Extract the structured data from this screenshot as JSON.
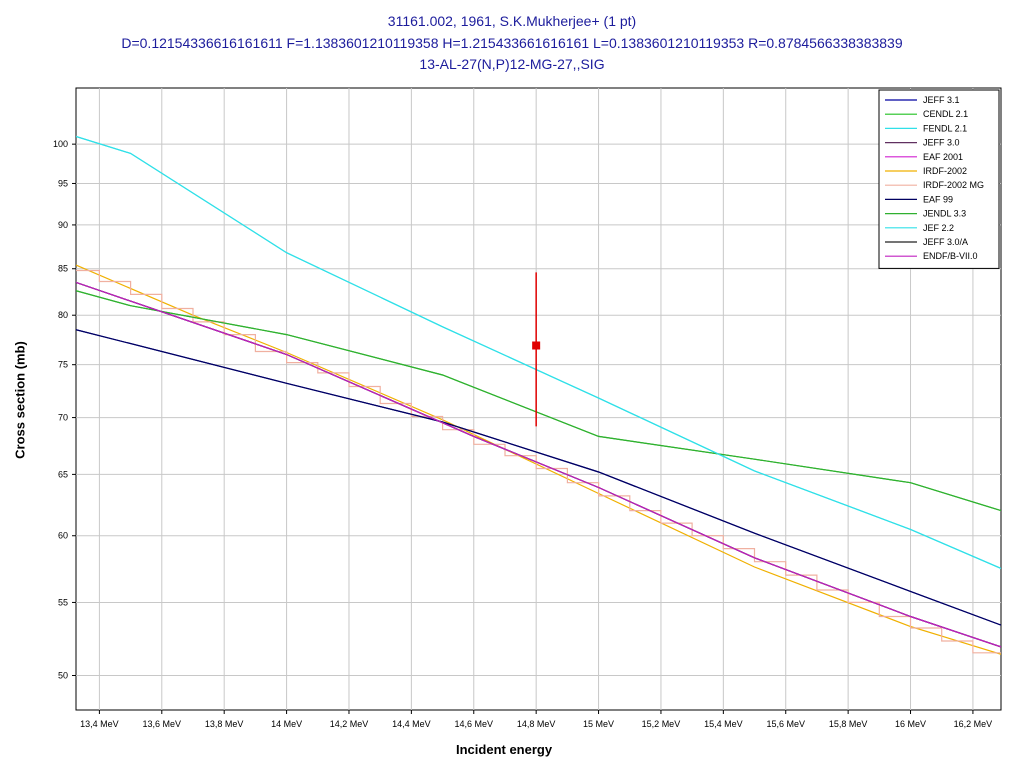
{
  "title": {
    "line1": "31161.002, 1961, S.K.Mukherjee+ (1 pt)",
    "line2": "D=0.12154336616161611 F=1.1383601210119358 H=1.215433661616161 L=0.1383601210119353 R=0.8784566338383839",
    "line3": "13-AL-27(N,P)12-MG-27,,SIG"
  },
  "chart_data": {
    "type": "line",
    "xlabel": "Incident energy",
    "ylabel": "Cross section (mb)",
    "x_unit_suffix": "MeV",
    "xlim": [
      13.325,
      16.29
    ],
    "ylim": [
      47.8,
      107.6
    ],
    "y_scale": "log",
    "x_ticks": [
      13.4,
      13.6,
      13.8,
      14.0,
      14.2,
      14.4,
      14.6,
      14.8,
      15.0,
      15.2,
      15.4,
      15.6,
      15.8,
      16.0,
      16.2
    ],
    "x_tick_labels": [
      "13,4 MeV",
      "13,6 MeV",
      "13,8 MeV",
      "14 MeV",
      "14,2 MeV",
      "14,4 MeV",
      "14,6 MeV",
      "14,8 MeV",
      "15 MeV",
      "15,2 MeV",
      "15,4 MeV",
      "15,6 MeV",
      "15,8 MeV",
      "16 MeV",
      "16,2 MeV"
    ],
    "y_ticks": [
      50,
      55,
      60,
      65,
      70,
      75,
      80,
      85,
      90,
      95,
      100
    ],
    "y_tick_labels": [
      "50",
      "55",
      "60",
      "65",
      "70",
      "75",
      "80",
      "85",
      "90",
      "95",
      "100"
    ],
    "grid": true,
    "legend_position": "top-right",
    "series": [
      {
        "name": "JEFF 3.1",
        "color": "#0000a0",
        "style": "line",
        "x": [
          13.325,
          14.0,
          14.5,
          15.0,
          15.5,
          16.0,
          16.29
        ],
        "y": [
          78.5,
          73.2,
          69.6,
          65.2,
          60.2,
          55.8,
          53.4
        ]
      },
      {
        "name": "CENDL 2.1",
        "color": "#20c020",
        "style": "line",
        "x": [
          13.325,
          13.5,
          14.0,
          14.5,
          15.0,
          15.5,
          16.0,
          16.29
        ],
        "y": [
          82.6,
          81.0,
          78.0,
          74.0,
          68.3,
          66.3,
          64.3,
          62.0
        ]
      },
      {
        "name": "FENDL 2.1",
        "color": "#30e0e8",
        "style": "line",
        "x": [
          13.325,
          13.5,
          14.0,
          14.5,
          15.0,
          15.5,
          16.0,
          16.29
        ],
        "y": [
          101.0,
          98.8,
          86.8,
          78.8,
          71.8,
          65.3,
          60.5,
          57.5
        ]
      },
      {
        "name": "JEFF 3.0",
        "color": "#603060",
        "style": "line",
        "x": [
          13.325,
          14.0,
          14.6,
          15.0,
          15.5,
          16.0,
          16.29
        ],
        "y": [
          83.5,
          76.0,
          68.3,
          63.9,
          58.3,
          54.0,
          51.9
        ]
      },
      {
        "name": "EAF 2001",
        "color": "#d020d0",
        "style": "line",
        "x": [
          13.325,
          14.0,
          14.6,
          15.0,
          15.5,
          16.0,
          16.29
        ],
        "y": [
          83.5,
          76.0,
          68.3,
          63.9,
          58.3,
          54.0,
          51.9
        ]
      },
      {
        "name": "IRDF-2002",
        "color": "#f0b000",
        "style": "line",
        "x": [
          13.325,
          13.7,
          14.0,
          14.5,
          15.0,
          15.5,
          16.0,
          16.29
        ],
        "y": [
          85.4,
          80.0,
          76.2,
          69.8,
          63.4,
          57.6,
          53.3,
          51.4
        ]
      },
      {
        "name": "IRDF-2002 MG",
        "color": "#f0b0a0",
        "style": "step",
        "x": [
          13.325,
          13.4,
          13.5,
          13.6,
          13.7,
          13.8,
          13.9,
          14.0,
          14.1,
          14.2,
          14.3,
          14.4,
          14.5,
          14.6,
          14.7,
          14.8,
          14.9,
          15.0,
          15.1,
          15.2,
          15.3,
          15.4,
          15.5,
          15.6,
          15.7,
          15.8,
          15.9,
          16.0,
          16.1,
          16.2
        ],
        "y": [
          84.8,
          83.6,
          82.2,
          80.7,
          79.3,
          78.0,
          76.3,
          75.2,
          74.2,
          72.9,
          71.3,
          70.1,
          68.9,
          67.6,
          66.6,
          65.5,
          64.3,
          63.2,
          62.0,
          61.0,
          60.0,
          59.0,
          58.0,
          57.0,
          55.9,
          55.0,
          54.0,
          53.2,
          52.3,
          51.5
        ]
      },
      {
        "name": "EAF 99",
        "color": "#000060",
        "style": "line",
        "x": [
          13.325,
          14.0,
          14.5,
          15.0,
          15.5,
          16.0,
          16.29
        ],
        "y": [
          78.5,
          73.2,
          69.6,
          65.2,
          60.2,
          55.8,
          53.4
        ]
      },
      {
        "name": "JENDL 3.3",
        "color": "#30b030",
        "style": "line",
        "x": [
          13.325,
          13.5,
          14.0,
          14.5,
          15.0,
          15.5,
          16.0,
          16.29
        ],
        "y": [
          82.6,
          81.0,
          78.0,
          74.0,
          68.3,
          66.3,
          64.3,
          62.0
        ]
      },
      {
        "name": "JEF 2.2",
        "color": "#30e0e8",
        "style": "line",
        "x": [
          13.325,
          13.5,
          14.0,
          14.5,
          15.0,
          15.5,
          16.0,
          16.29
        ],
        "y": [
          101.0,
          98.8,
          86.8,
          78.8,
          71.8,
          65.3,
          60.5,
          57.5
        ]
      },
      {
        "name": "JEFF 3.0/A",
        "color": "#202020",
        "style": "line",
        "x": [
          13.325,
          14.0,
          14.6,
          15.0,
          15.5,
          16.0,
          16.29
        ],
        "y": [
          83.5,
          76.0,
          68.3,
          63.9,
          58.3,
          54.0,
          51.9
        ]
      },
      {
        "name": "ENDF/B-VII.0",
        "color": "#c020c0",
        "style": "line",
        "x": [
          13.325,
          14.0,
          14.6,
          15.0,
          15.5,
          16.0,
          16.29
        ],
        "y": [
          83.5,
          76.0,
          68.3,
          63.9,
          58.3,
          54.0,
          51.9
        ]
      }
    ],
    "experimental_points": [
      {
        "x": 14.8,
        "y": 76.9,
        "y_err_low": 69.2,
        "y_err_high": 84.6,
        "color": "#e00000"
      }
    ]
  }
}
